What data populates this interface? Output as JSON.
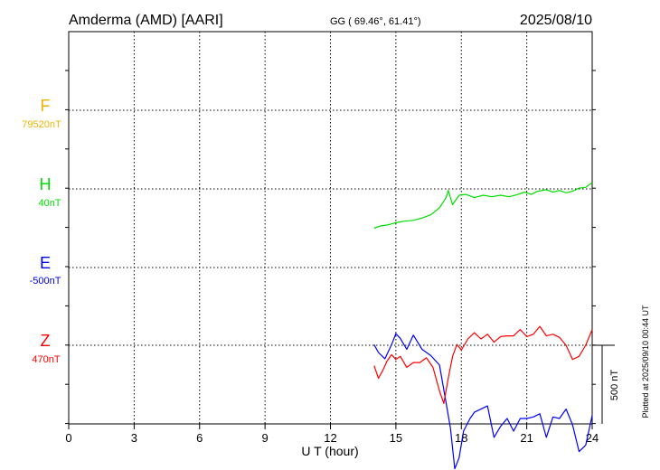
{
  "header": {
    "station": "Amderma (AMD)  [AARI]",
    "coords": "GG ( 69.46°,  61.41°)",
    "date": "2025/08/10"
  },
  "footer": {
    "plotted": "Plotted at 2025/09/10 00:44 UT"
  },
  "scale": {
    "label": "500 nT",
    "value_nT": 500
  },
  "colors": {
    "F": "#f0b400",
    "H": "#00e000",
    "E": "#0000ff",
    "Z": "#ff0000",
    "axis": "#000000",
    "grid": "#000000"
  },
  "chart_data": {
    "type": "line",
    "title": "Amderma (AMD)  [AARI]",
    "xlabel": "U T (hour)",
    "xlim": [
      0,
      24
    ],
    "xticks": [
      0,
      3,
      6,
      9,
      12,
      15,
      18,
      21,
      24
    ],
    "grid": true,
    "series": [
      {
        "name": "F",
        "baseline": "79520nT",
        "x": [],
        "y": []
      },
      {
        "name": "H",
        "baseline": "40nT",
        "x": [
          14.0,
          14.3,
          14.6,
          15.0,
          15.4,
          15.8,
          16.2,
          16.6,
          17.0,
          17.3,
          17.4,
          17.6,
          17.9,
          18.2,
          18.6,
          19.0,
          19.4,
          19.8,
          20.2,
          20.6,
          20.9,
          21.2,
          21.5,
          21.9,
          22.2,
          22.5,
          22.8,
          23.1,
          23.4,
          23.7,
          24.0
        ],
        "y": [
          -250,
          -235,
          -230,
          -215,
          -205,
          -200,
          -185,
          -165,
          -120,
          -55,
          -10,
          -100,
          -40,
          -35,
          -55,
          -40,
          -50,
          -40,
          -50,
          -35,
          -20,
          -35,
          -15,
          -5,
          -20,
          -10,
          -25,
          -15,
          5,
          10,
          40
        ]
      },
      {
        "name": "E",
        "baseline": "-500nT",
        "x": [
          14.0,
          14.2,
          14.5,
          14.8,
          15.0,
          15.2,
          15.5,
          15.8,
          16.2,
          16.6,
          17.0,
          17.3,
          17.5,
          17.7,
          17.9,
          18.1,
          18.4,
          18.6,
          18.9,
          19.2,
          19.5,
          19.8,
          20.1,
          20.4,
          20.7,
          21.0,
          21.3,
          21.6,
          21.9,
          22.2,
          22.5,
          22.8,
          23.1,
          23.4,
          23.7,
          24.0
        ],
        "y": [
          -490,
          -540,
          -580,
          -490,
          -420,
          -450,
          -520,
          -430,
          -520,
          -560,
          -620,
          -860,
          -1020,
          -1280,
          -1210,
          -1040,
          -960,
          -920,
          -900,
          -880,
          -1080,
          -1010,
          -960,
          -1040,
          -960,
          -960,
          -950,
          -930,
          -1080,
          -950,
          -960,
          -900,
          -1000,
          -1170,
          -1130,
          -940
        ]
      },
      {
        "name": "Z",
        "baseline": "470nT",
        "x": [
          14.0,
          14.2,
          14.4,
          14.6,
          14.8,
          15.0,
          15.2,
          15.5,
          15.8,
          16.1,
          16.4,
          16.7,
          17.0,
          17.2,
          17.4,
          17.6,
          17.8,
          18.0,
          18.3,
          18.6,
          18.9,
          19.2,
          19.5,
          19.8,
          20.1,
          20.4,
          20.7,
          21.0,
          21.3,
          21.6,
          21.9,
          22.2,
          22.5,
          22.8,
          23.1,
          23.4,
          23.7,
          24.0
        ],
        "y": [
          -130,
          -210,
          -160,
          -100,
          -60,
          -90,
          -70,
          -140,
          -110,
          -110,
          -80,
          -140,
          -290,
          -370,
          -210,
          -70,
          5,
          -30,
          40,
          80,
          40,
          70,
          20,
          55,
          60,
          60,
          100,
          55,
          70,
          120,
          60,
          70,
          50,
          0,
          -90,
          -70,
          0,
          100
        ]
      }
    ]
  }
}
